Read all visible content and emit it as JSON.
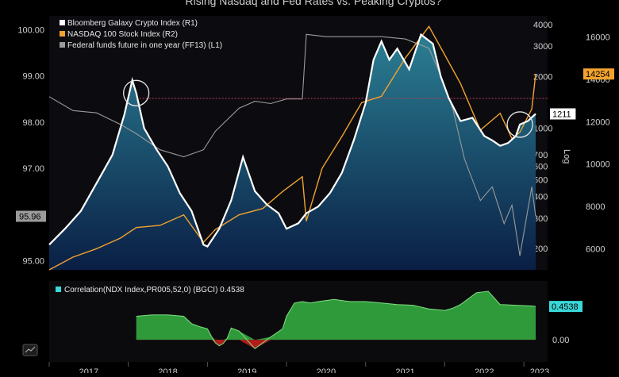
{
  "title": "Rising Nasdaq and Fed Rates vs. Peaking Cryptos?",
  "colors": {
    "background": "#000000",
    "plot_top": "#0c0c10",
    "crypto": "#ffffff",
    "crypto_fill_top": "#2b7f93",
    "crypto_fill_bottom": "#0a1f45",
    "nasdaq": "#f2a22e",
    "fedfunds": "#9a9a9a",
    "correlation_fill": "#2f9a3a",
    "correlation_neg": "#b01d1d",
    "correlation_label": "#39d8d8",
    "axis_text": "#cfcfcf",
    "last_nasdaq_bg": "#f2a22e",
    "last_crypto_bg": "#ffffff",
    "last_corr_bg": "#39d8d8"
  },
  "icons": [
    "chart-toggle-icon"
  ],
  "chart_data": [
    {
      "type": "line",
      "title": "Rising Nasdaq and Fed Rates vs. Peaking Cryptos?",
      "xlabel": "",
      "x_tick_labels": [
        "2017",
        "2018",
        "2019",
        "2020",
        "2021",
        "2022",
        "2023"
      ],
      "x_range": [
        2017.0,
        2023.3
      ],
      "legend_placement": "top-left",
      "highlight_line_value": 13100,
      "highlight_circles": [
        {
          "x": 2018.1,
          "series": "Bloomberg Galaxy Crypto Index (R1)"
        },
        {
          "x": 2022.95,
          "series": "Bloomberg Galaxy Crypto Index (R1)"
        }
      ],
      "axes": {
        "left": {
          "ticks": [
            "95.00",
            "96.00",
            "97.00",
            "98.00",
            "99.00",
            "100.00"
          ],
          "range": [
            94.8,
            100.3
          ],
          "last_value_label": "95.96"
        },
        "right1": {
          "label": "Log",
          "ticks": [
            "200",
            "300",
            "400",
            "500",
            "600",
            "700",
            "1000",
            "2000",
            "3000",
            "4000"
          ],
          "range": [
            150,
            4500
          ],
          "scale": "log",
          "last_value_label": "1211"
        },
        "right2": {
          "ticks": [
            "6000",
            "8000",
            "10000",
            "12000",
            "14000",
            "16000"
          ],
          "range": [
            5000,
            17000
          ],
          "last_value_label": "14254"
        }
      },
      "series": [
        {
          "name": "Bloomberg Galaxy Crypto Index (R1)",
          "axis": "right1",
          "x": [
            2017.0,
            2017.2,
            2017.4,
            2017.6,
            2017.8,
            2017.95,
            2018.05,
            2018.1,
            2018.2,
            2018.35,
            2018.5,
            2018.65,
            2018.8,
            2018.95,
            2019.0,
            2019.15,
            2019.3,
            2019.45,
            2019.6,
            2019.75,
            2019.9,
            2020.0,
            2020.15,
            2020.25,
            2020.4,
            2020.55,
            2020.7,
            2020.85,
            2021.0,
            2021.1,
            2021.2,
            2021.3,
            2021.4,
            2021.55,
            2021.7,
            2021.85,
            2021.95,
            2022.05,
            2022.2,
            2022.35,
            2022.5,
            2022.6,
            2022.7,
            2022.8,
            2022.9,
            2022.95,
            2023.05,
            2023.15
          ],
          "values": [
            210,
            260,
            330,
            480,
            700,
            1200,
            1900,
            1600,
            1000,
            760,
            600,
            420,
            330,
            210,
            205,
            260,
            380,
            680,
            430,
            360,
            320,
            260,
            280,
            320,
            350,
            420,
            550,
            850,
            1400,
            2500,
            3200,
            2500,
            2900,
            2200,
            3500,
            3100,
            2000,
            1500,
            1100,
            1150,
            900,
            850,
            790,
            820,
            900,
            1050,
            1100,
            1211
          ]
        },
        {
          "name": "NASDAQ 100 Stock Index (R2)",
          "axis": "right2",
          "x": [
            2017.0,
            2017.3,
            2017.6,
            2017.9,
            2018.1,
            2018.4,
            2018.7,
            2018.95,
            2019.1,
            2019.4,
            2019.7,
            2019.95,
            2020.2,
            2020.25,
            2020.45,
            2020.7,
            2020.95,
            2021.2,
            2021.5,
            2021.8,
            2021.95,
            2022.2,
            2022.45,
            2022.7,
            2022.85,
            2022.95,
            2023.1,
            2023.15
          ],
          "values": [
            5000,
            5600,
            6000,
            6500,
            7000,
            7100,
            7600,
            6300,
            6900,
            7600,
            7900,
            8700,
            9400,
            7300,
            9800,
            11300,
            12900,
            13200,
            15000,
            16500,
            15500,
            13800,
            11600,
            12400,
            11200,
            11500,
            12600,
            14254
          ]
        },
        {
          "name": "Federal funds future in one year (FF13) (L1)",
          "axis": "left",
          "x": [
            2017.0,
            2017.3,
            2017.6,
            2017.9,
            2018.1,
            2018.4,
            2018.7,
            2018.95,
            2019.1,
            2019.4,
            2019.6,
            2019.8,
            2020.0,
            2020.2,
            2020.25,
            2020.5,
            2020.8,
            2021.0,
            2021.2,
            2021.5,
            2021.8,
            2021.95,
            2022.1,
            2022.25,
            2022.45,
            2022.6,
            2022.75,
            2022.85,
            2022.95,
            2023.1,
            2023.15
          ],
          "values": [
            98.55,
            98.25,
            98.2,
            97.95,
            97.75,
            97.4,
            97.25,
            97.4,
            97.8,
            98.3,
            98.45,
            98.4,
            98.5,
            98.5,
            99.9,
            99.85,
            99.85,
            99.85,
            99.85,
            99.8,
            99.6,
            99.0,
            98.3,
            97.2,
            96.3,
            96.6,
            95.8,
            96.2,
            95.1,
            96.6,
            95.96
          ]
        }
      ]
    },
    {
      "type": "area",
      "title": "",
      "label": "Correlation(NDX Index,PR005,52,0) (BGCI) 0.4538",
      "axis_ticks": [
        "0.00"
      ],
      "range": [
        -0.3,
        0.8
      ],
      "last_value_label": "0.4538",
      "x": [
        2018.1,
        2018.3,
        2018.5,
        2018.7,
        2018.8,
        2018.9,
        2019.0,
        2019.05,
        2019.1,
        2019.15,
        2019.2,
        2019.25,
        2019.3,
        2019.4,
        2019.6,
        2019.8,
        2019.95,
        2020.0,
        2020.1,
        2020.2,
        2020.3,
        2020.4,
        2020.6,
        2020.8,
        2021.0,
        2021.2,
        2021.4,
        2021.6,
        2021.8,
        2022.0,
        2022.1,
        2022.2,
        2022.3,
        2022.4,
        2022.55,
        2022.7,
        2022.9,
        2023.1,
        2023.15
      ],
      "values": [
        0.32,
        0.34,
        0.34,
        0.32,
        0.22,
        0.18,
        0.15,
        0.05,
        -0.04,
        -0.08,
        -0.05,
        0.02,
        0.16,
        0.12,
        -0.12,
        0.04,
        0.15,
        0.32,
        0.5,
        0.52,
        0.5,
        0.52,
        0.55,
        0.52,
        0.52,
        0.5,
        0.48,
        0.47,
        0.42,
        0.4,
        0.43,
        0.48,
        0.56,
        0.64,
        0.66,
        0.48,
        0.47,
        0.46,
        0.4538
      ]
    }
  ]
}
